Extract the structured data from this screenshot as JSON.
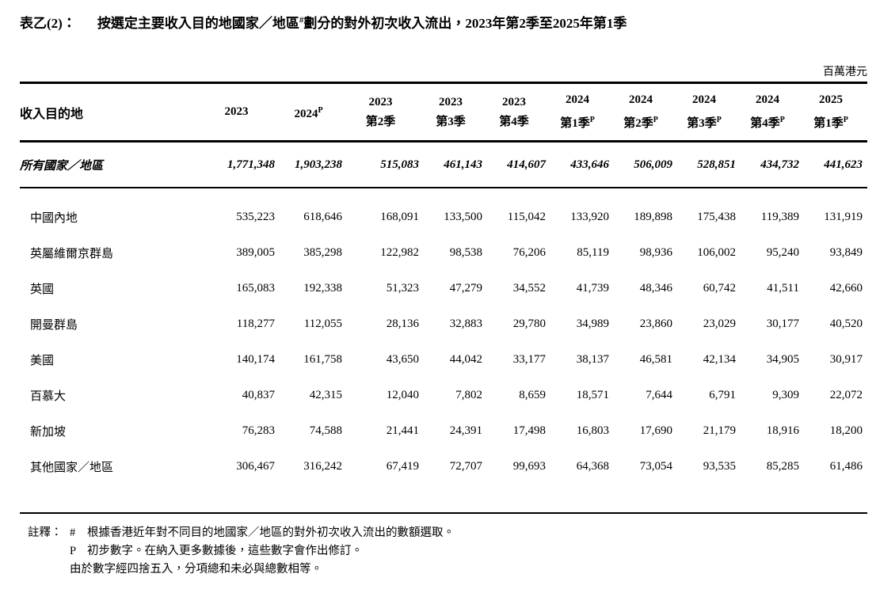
{
  "palette": {
    "text": "#000000",
    "background": "#ffffff",
    "rule": "#000000"
  },
  "title": {
    "label": "表乙(2)：",
    "before_sup": "按選定主要收入目的地國家／地區",
    "sup": "#",
    "after_sup": "劃分的對外初次收入流出，2023年第2季至2025年第1季"
  },
  "unit_note": "百萬港元",
  "table": {
    "row_header": "收入目的地",
    "columns": [
      {
        "line1": "2023",
        "line2": "",
        "sup": ""
      },
      {
        "line1": "2024",
        "line2": "",
        "sup": "P"
      },
      {
        "line1": "2023",
        "line2": "第2季",
        "sup": ""
      },
      {
        "line1": "2023",
        "line2": "第3季",
        "sup": ""
      },
      {
        "line1": "2023",
        "line2": "第4季",
        "sup": ""
      },
      {
        "line1": "2024",
        "line2": "第1季",
        "sup": "P"
      },
      {
        "line1": "2024",
        "line2": "第2季",
        "sup": "P"
      },
      {
        "line1": "2024",
        "line2": "第3季",
        "sup": "P"
      },
      {
        "line1": "2024",
        "line2": "第4季",
        "sup": "P"
      },
      {
        "line1": "2025",
        "line2": "第1季",
        "sup": "P"
      }
    ],
    "total_row": {
      "label": "所有國家／地區",
      "values": [
        "1,771,348",
        "1,903,238",
        "515,083",
        "461,143",
        "414,607",
        "433,646",
        "506,009",
        "528,851",
        "434,732",
        "441,623"
      ]
    },
    "rows": [
      {
        "label": "中國內地",
        "values": [
          "535,223",
          "618,646",
          "168,091",
          "133,500",
          "115,042",
          "133,920",
          "189,898",
          "175,438",
          "119,389",
          "131,919"
        ]
      },
      {
        "label": "英屬維爾京群島",
        "values": [
          "389,005",
          "385,298",
          "122,982",
          "98,538",
          "76,206",
          "85,119",
          "98,936",
          "106,002",
          "95,240",
          "93,849"
        ]
      },
      {
        "label": "英國",
        "values": [
          "165,083",
          "192,338",
          "51,323",
          "47,279",
          "34,552",
          "41,739",
          "48,346",
          "60,742",
          "41,511",
          "42,660"
        ]
      },
      {
        "label": "開曼群島",
        "values": [
          "118,277",
          "112,055",
          "28,136",
          "32,883",
          "29,780",
          "34,989",
          "23,860",
          "23,029",
          "30,177",
          "40,520"
        ]
      },
      {
        "label": "美國",
        "values": [
          "140,174",
          "161,758",
          "43,650",
          "44,042",
          "33,177",
          "38,137",
          "46,581",
          "42,134",
          "34,905",
          "30,917"
        ]
      },
      {
        "label": "百慕大",
        "values": [
          "40,837",
          "42,315",
          "12,040",
          "7,802",
          "8,659",
          "18,571",
          "7,644",
          "6,791",
          "9,309",
          "22,072"
        ]
      },
      {
        "label": "新加坡",
        "values": [
          "76,283",
          "74,588",
          "21,441",
          "24,391",
          "17,498",
          "16,803",
          "17,690",
          "21,179",
          "18,916",
          "18,200"
        ]
      },
      {
        "label": "其他國家／地區",
        "values": [
          "306,467",
          "316,242",
          "67,419",
          "72,707",
          "99,693",
          "64,368",
          "73,054",
          "93,535",
          "85,285",
          "61,486"
        ]
      }
    ]
  },
  "footnotes": {
    "label": "註釋：",
    "items": [
      {
        "marker": "#",
        "text": "根據香港近年對不同目的地國家／地區的對外初次收入流出的數額選取。"
      },
      {
        "marker": "P",
        "text": "初步數字。在納入更多數據後，這些數字會作出修訂。"
      },
      {
        "marker": "",
        "text": "由於數字經四捨五入，分項總和未必與總數相等。"
      }
    ]
  }
}
